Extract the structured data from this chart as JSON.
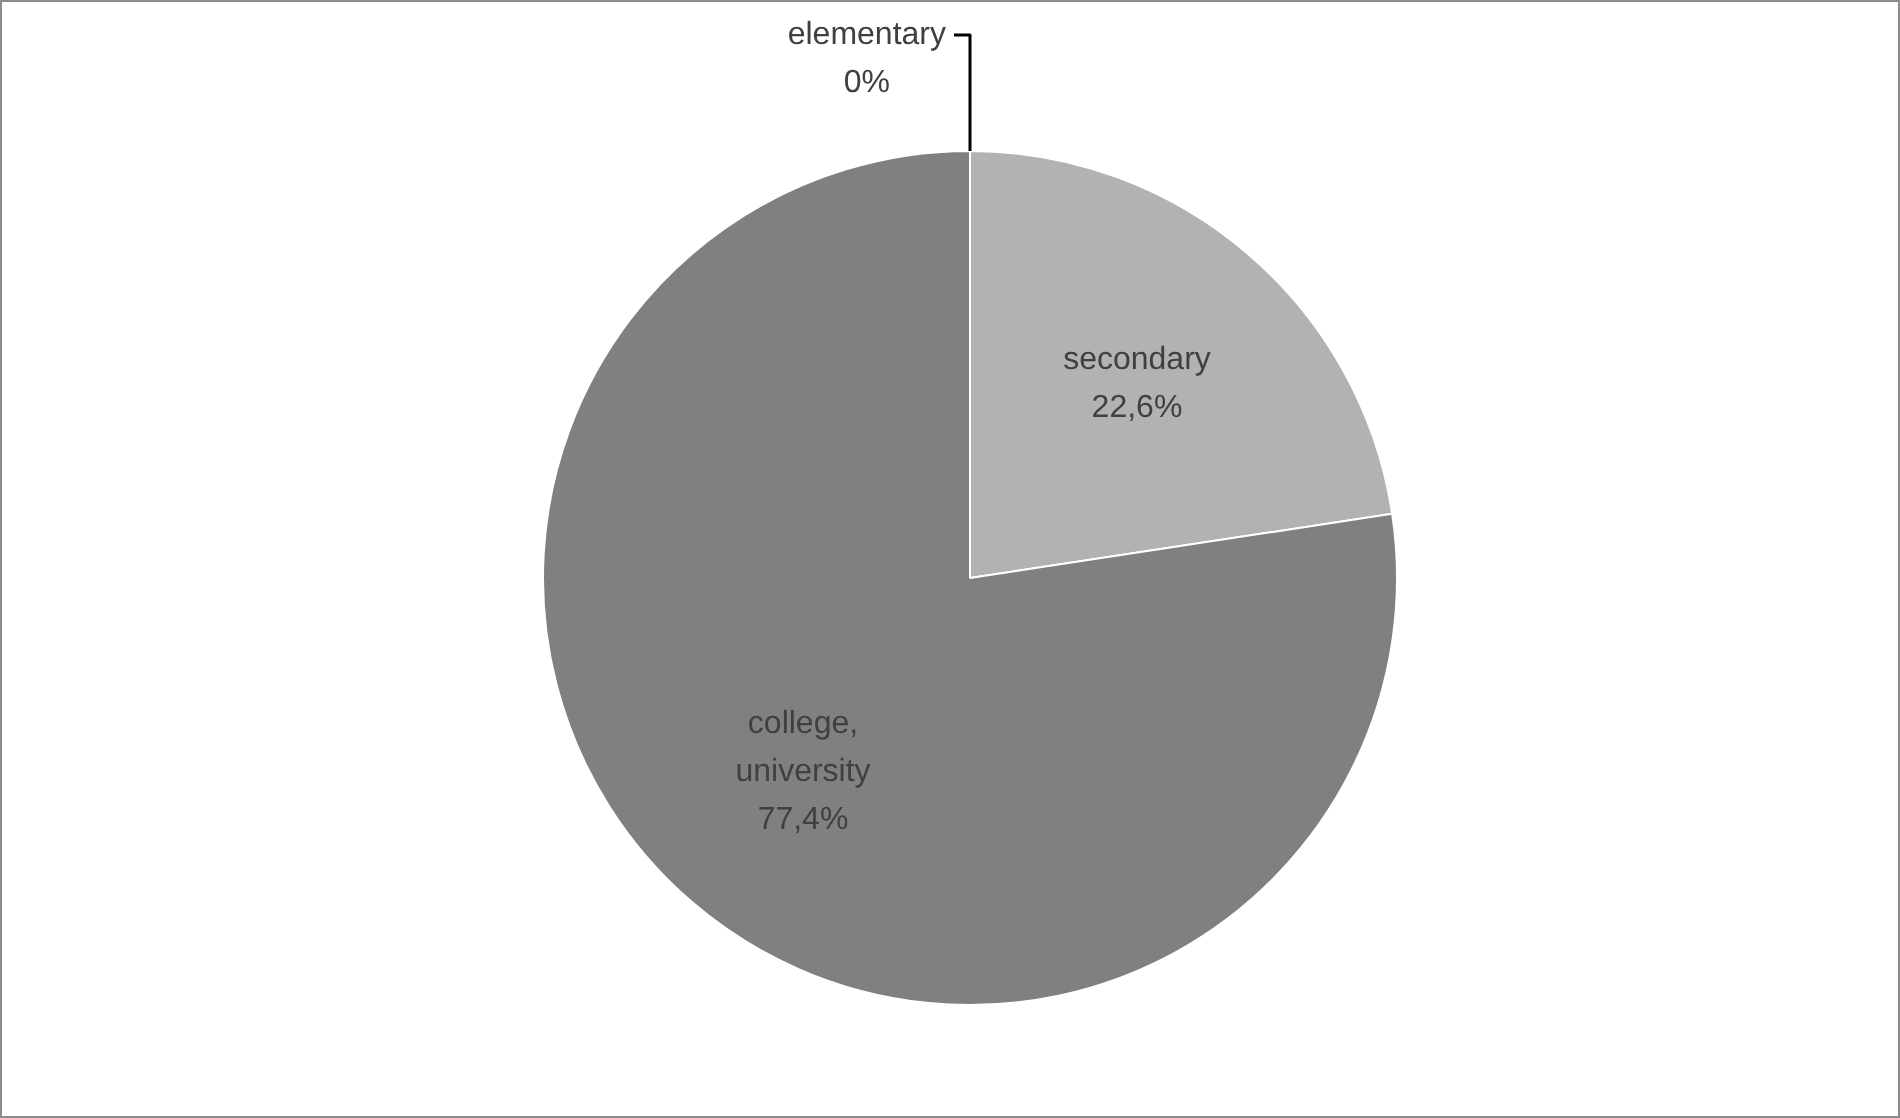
{
  "chart_data": {
    "type": "pie",
    "categories": [
      "elementary",
      "secondary",
      "college, university"
    ],
    "values": [
      0,
      22.6,
      77.4
    ],
    "colors": [
      "#5a5a5a",
      "#b2b2b2",
      "#808080"
    ],
    "value_labels": [
      "0%",
      "22,6%",
      "77,4%"
    ],
    "legend": false
  }
}
